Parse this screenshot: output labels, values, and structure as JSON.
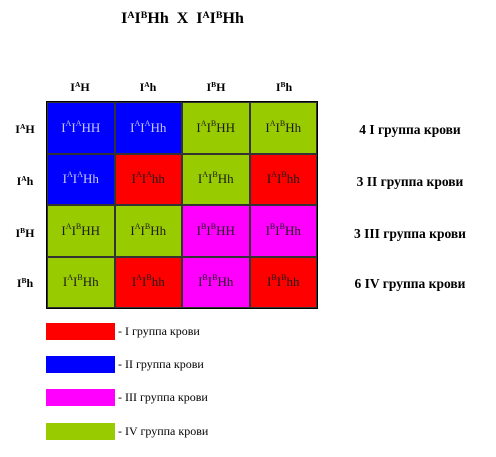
{
  "title": {
    "left": "I",
    "sup1": "A",
    "mid": "I",
    "sup2": "B",
    "right": "Hh  X  I",
    "sup3": "A",
    "mid2": "I",
    "sup4": "B",
    "end": "Hh"
  },
  "colors": {
    "I": "#ff0000",
    "II": "#0000ff",
    "III": "#ff00ff",
    "IV": "#99cc00"
  },
  "gametes": [
    {
      "base": "I",
      "sup": "A",
      "rest": "H"
    },
    {
      "base": "I",
      "sup": "A",
      "rest": "h"
    },
    {
      "base": "I",
      "sup": "B",
      "rest": "H"
    },
    {
      "base": "I",
      "sup": "B",
      "rest": "h"
    }
  ],
  "cells": [
    [
      {
        "a": "A",
        "b": "A",
        "g": "HH",
        "group": "II"
      },
      {
        "a": "A",
        "b": "A",
        "g": "Hh",
        "group": "II"
      },
      {
        "a": "A",
        "b": "B",
        "g": "HH",
        "group": "IV"
      },
      {
        "a": "A",
        "b": "B",
        "g": "Hh",
        "group": "IV"
      }
    ],
    [
      {
        "a": "A",
        "b": "A",
        "g": "Hh",
        "group": "II"
      },
      {
        "a": "A",
        "b": "A",
        "g": "hh",
        "group": "I"
      },
      {
        "a": "A",
        "b": "B",
        "g": "Hh",
        "group": "IV"
      },
      {
        "a": "A",
        "b": "B",
        "g": "hh",
        "group": "I"
      }
    ],
    [
      {
        "a": "A",
        "b": "B",
        "g": "HH",
        "group": "IV"
      },
      {
        "a": "A",
        "b": "B",
        "g": "Hh",
        "group": "IV"
      },
      {
        "a": "B",
        "b": "B",
        "g": "HH",
        "group": "III"
      },
      {
        "a": "B",
        "b": "B",
        "g": "Hh",
        "group": "III"
      }
    ],
    [
      {
        "a": "A",
        "b": "B",
        "g": "Hh",
        "group": "IV"
      },
      {
        "a": "A",
        "b": "B",
        "g": "hh",
        "group": "I"
      },
      {
        "a": "B",
        "b": "B",
        "g": "Hh",
        "group": "III"
      },
      {
        "a": "B",
        "b": "B",
        "g": "hh",
        "group": "I"
      }
    ]
  ],
  "results": [
    "4 I группа крови",
    "3 II группа крови",
    "3 III группа крови",
    "6 IV группа крови"
  ],
  "legend": [
    {
      "color": "#ff0000",
      "label": "- I группа крови"
    },
    {
      "color": "#0000ff",
      "label": "- II группа крови"
    },
    {
      "color": "#ff00ff",
      "label": "- III группа крови"
    },
    {
      "color": "#99cc00",
      "label": "- IV  группа крови"
    }
  ]
}
